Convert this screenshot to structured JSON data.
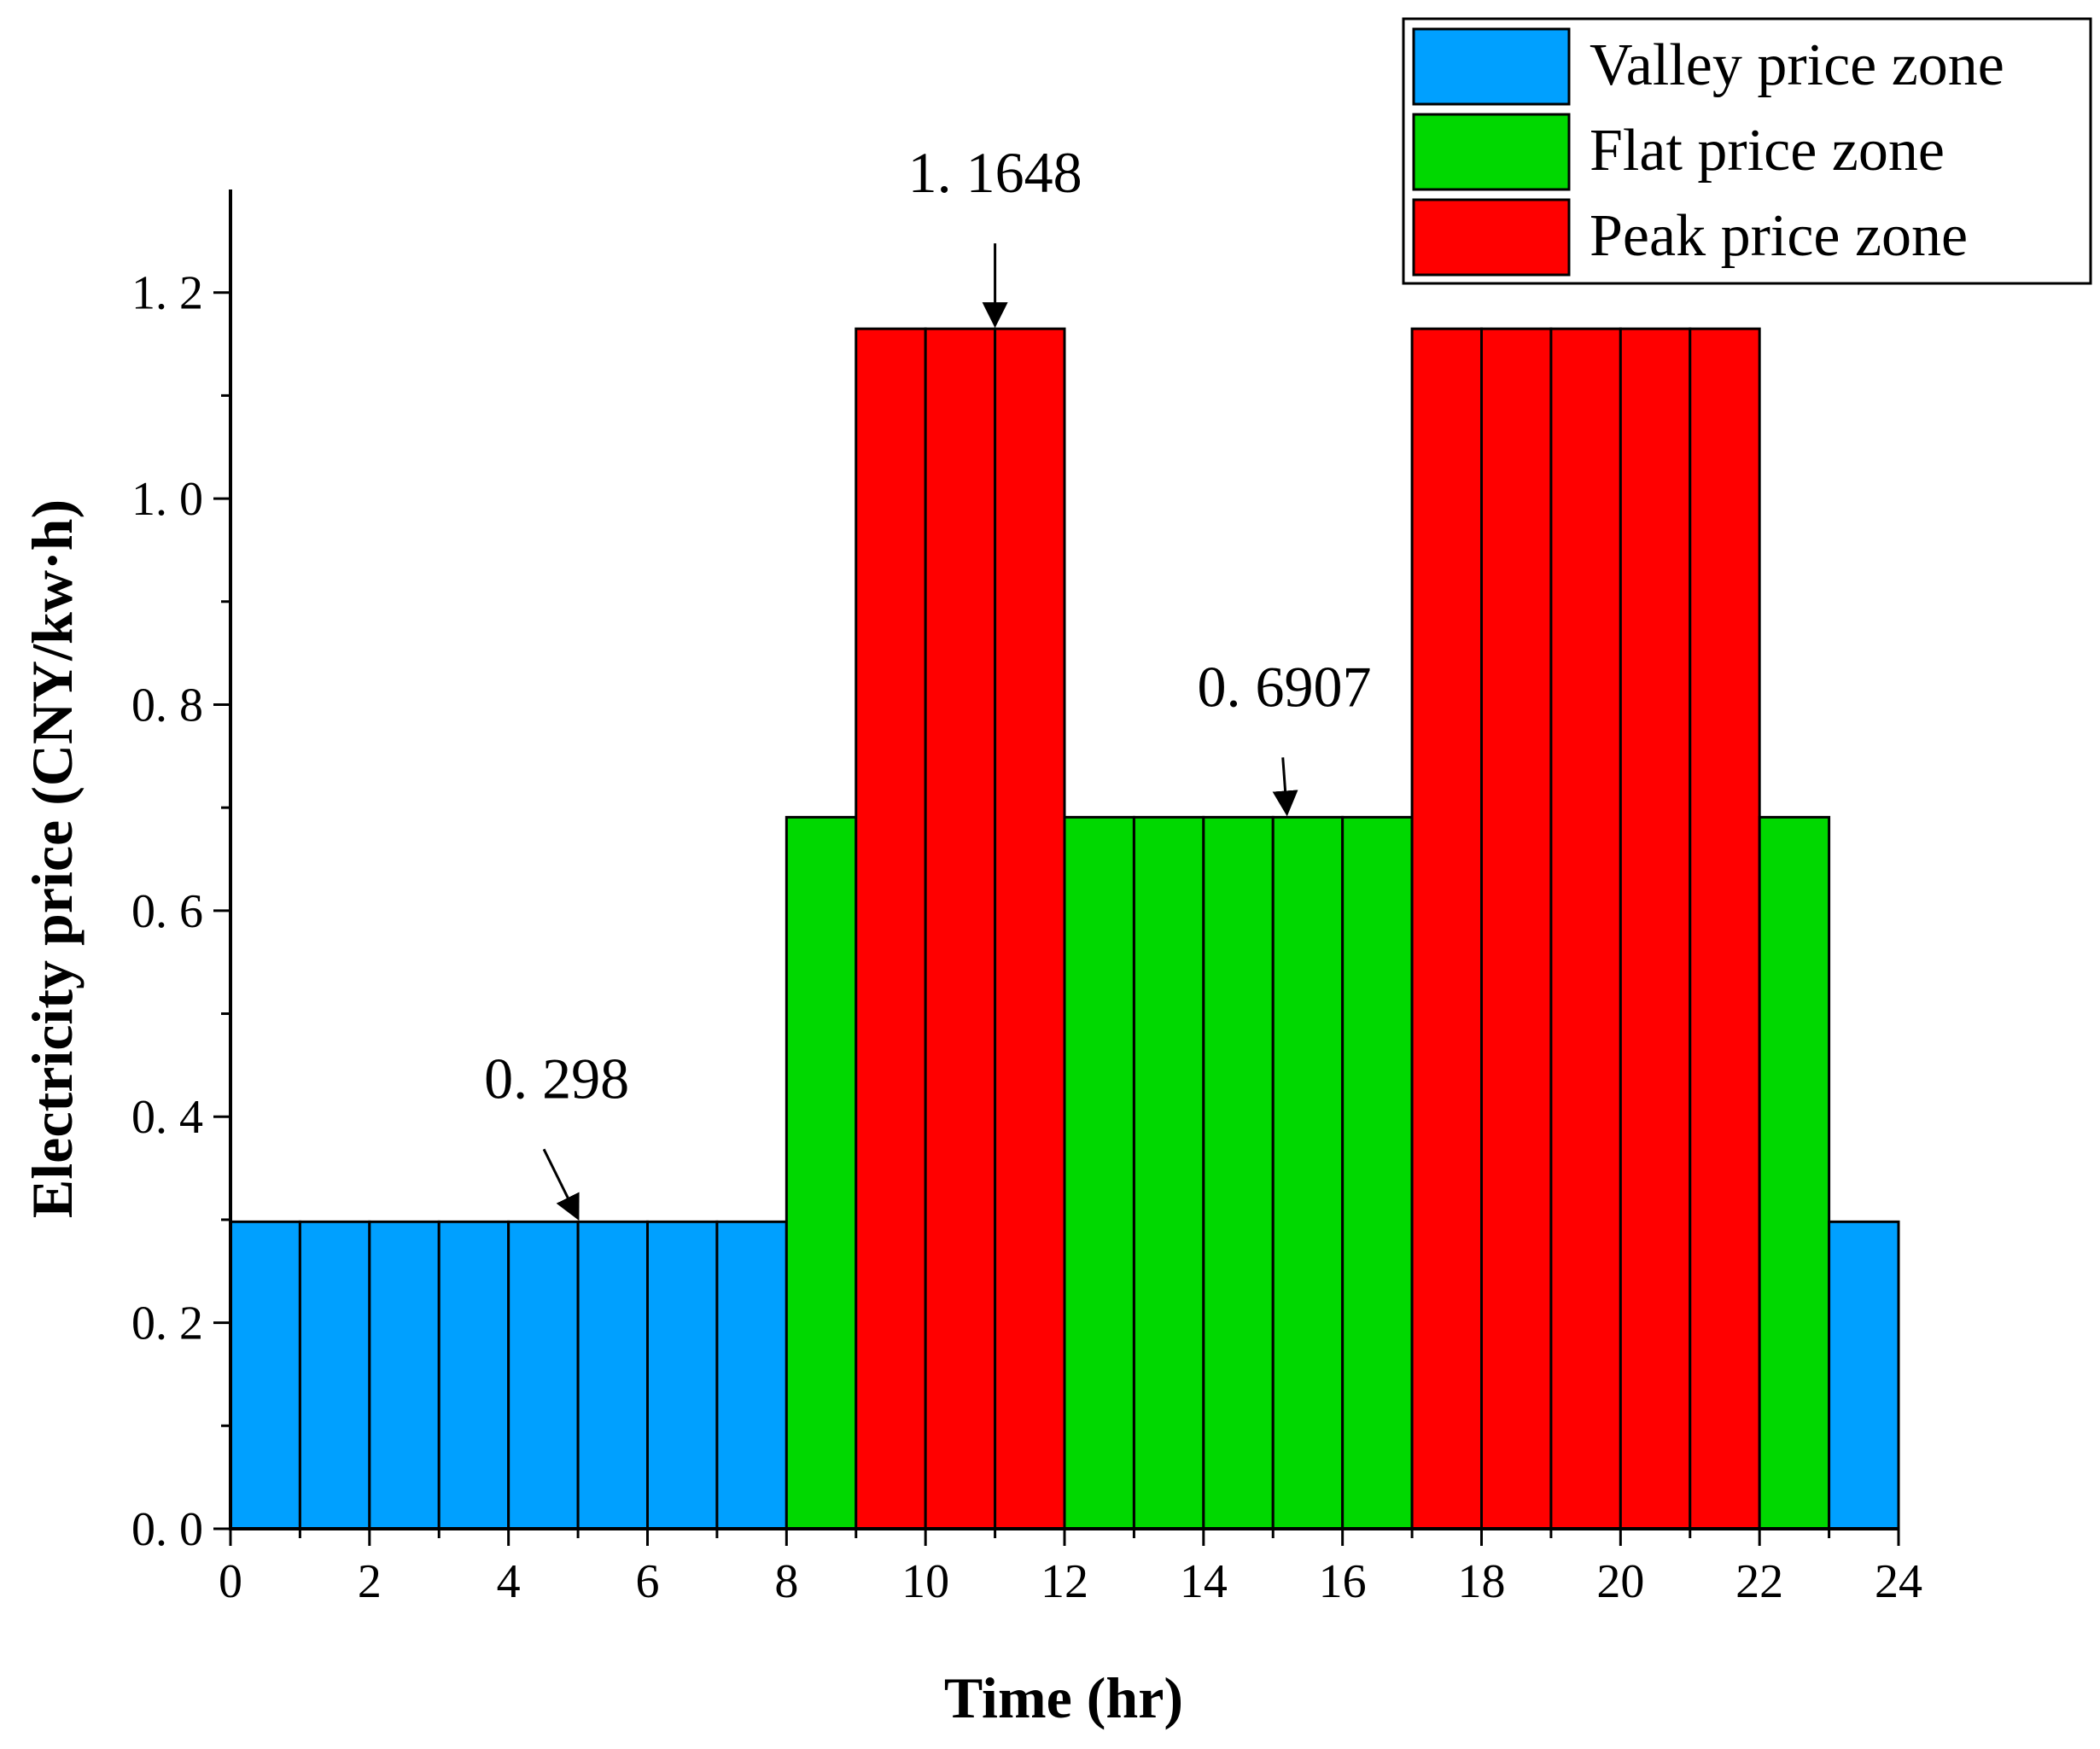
{
  "chart_data": {
    "type": "bar",
    "title": "",
    "xlabel": "Time (hr)",
    "ylabel": "Electricity price (CNY/kw·h)",
    "xlim": [
      0,
      24
    ],
    "ylim": [
      0,
      1.3
    ],
    "x_ticks": [
      "0",
      "2",
      "4",
      "6",
      "8",
      "10",
      "12",
      "14",
      "16",
      "18",
      "20",
      "22",
      "24"
    ],
    "y_ticks": [
      "0.0",
      "0.2",
      "0.4",
      "0.6",
      "0.8",
      "1.0",
      "1.2"
    ],
    "categories": [
      "0",
      "1",
      "2",
      "3",
      "4",
      "5",
      "6",
      "7",
      "8",
      "9",
      "10",
      "11",
      "12",
      "13",
      "14",
      "15",
      "16",
      "17",
      "18",
      "19",
      "20",
      "21",
      "22",
      "23"
    ],
    "values": [
      0.298,
      0.298,
      0.298,
      0.298,
      0.298,
      0.298,
      0.298,
      0.298,
      0.6907,
      1.1648,
      1.1648,
      1.1648,
      0.6907,
      0.6907,
      0.6907,
      0.6907,
      0.6907,
      1.1648,
      1.1648,
      1.1648,
      1.1648,
      1.1648,
      0.6907,
      0.298
    ],
    "zones": [
      "valley",
      "valley",
      "valley",
      "valley",
      "valley",
      "valley",
      "valley",
      "valley",
      "flat",
      "peak",
      "peak",
      "peak",
      "flat",
      "flat",
      "flat",
      "flat",
      "flat",
      "peak",
      "peak",
      "peak",
      "peak",
      "peak",
      "flat",
      "valley"
    ],
    "legend": [
      {
        "key": "valley",
        "label": "Valley price zone",
        "color": "#00a0ff"
      },
      {
        "key": "flat",
        "label": "Flat price zone",
        "color": "#00d800"
      },
      {
        "key": "peak",
        "label": "Peak price zone",
        "color": "#ff0000"
      }
    ],
    "legend_position": "top-right",
    "annotations": [
      {
        "text": "0. 298",
        "x": 5,
        "y": 0.298
      },
      {
        "text": "1. 1648",
        "x": 11,
        "y": 1.1648
      },
      {
        "text": "0. 6907",
        "x": 15.2,
        "y": 0.6907
      }
    ]
  }
}
